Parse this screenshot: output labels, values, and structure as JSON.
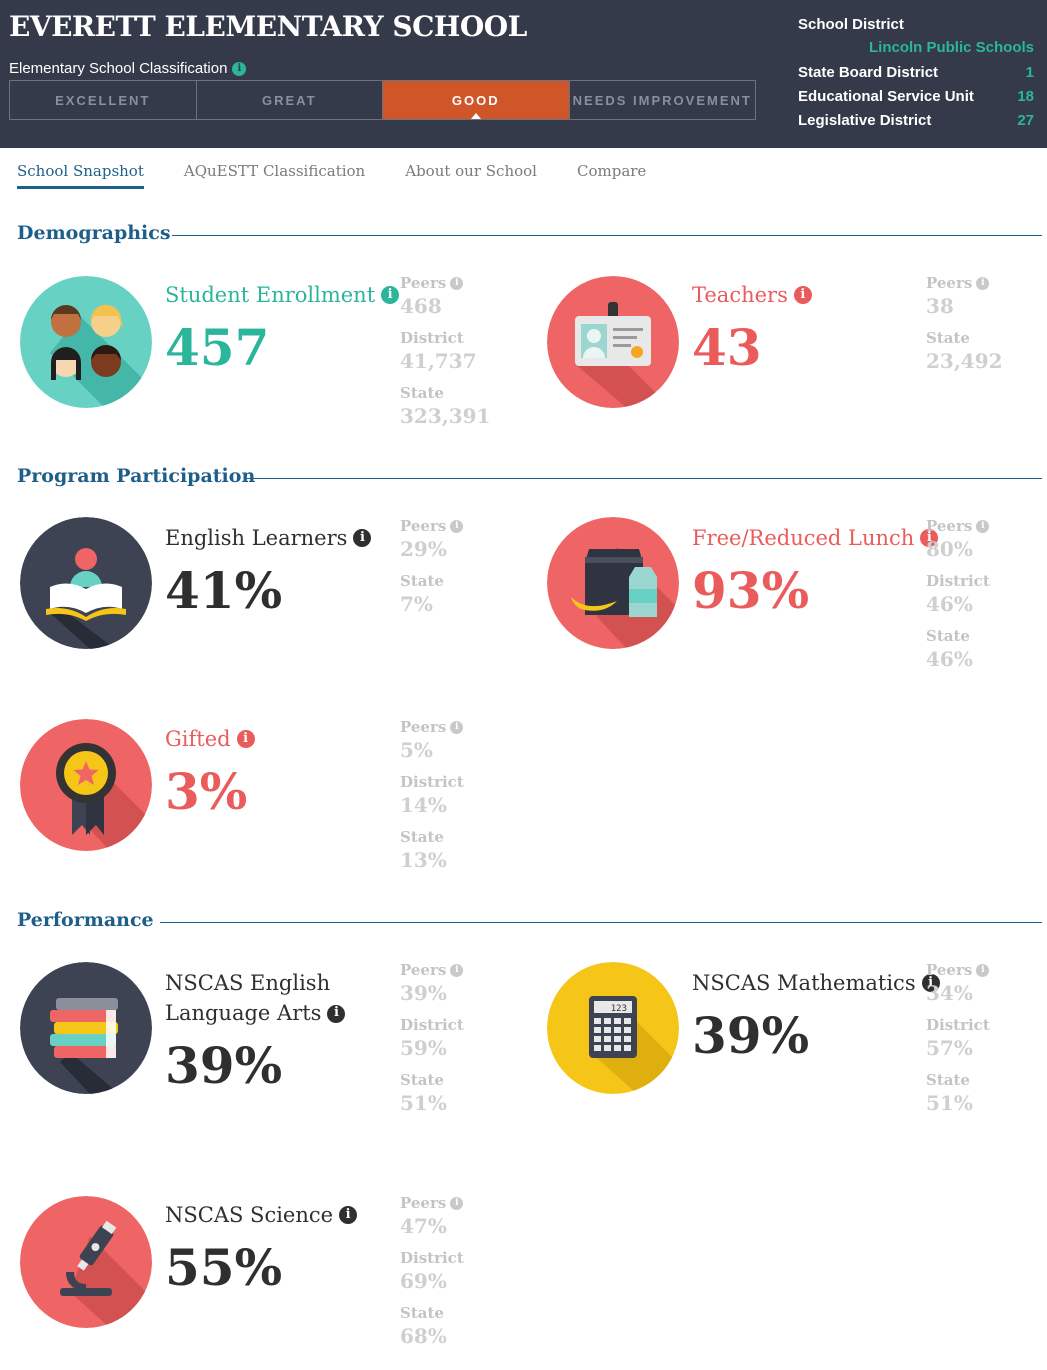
{
  "header": {
    "school_name": "EVERETT ELEMENTARY SCHOOL",
    "classification_label": "Elementary School Classification",
    "classification_info_icon": "i",
    "classifications": [
      "EXCELLENT",
      "GREAT",
      "GOOD",
      "NEEDS IMPROVEMENT"
    ],
    "active_classification": "GOOD",
    "district": {
      "school_district_label": "School District",
      "school_district_value": "Lincoln Public Schools",
      "rows": [
        {
          "label": "State Board District",
          "value": "1"
        },
        {
          "label": "Educational Service Unit",
          "value": "18"
        },
        {
          "label": "Legislative District",
          "value": "27"
        }
      ]
    }
  },
  "tabs": [
    "School Snapshot",
    "AQuESTT Classification",
    "About our School",
    "Compare"
  ],
  "sections": {
    "demographics": "Demographics",
    "program": "Program Participation",
    "performance": "Performance"
  },
  "metrics": {
    "enrollment": {
      "title": "Student Enrollment",
      "value": "457",
      "icon": "students-icon",
      "cmp": [
        {
          "label": "Peers",
          "value": "468"
        },
        {
          "label": "District",
          "value": "41,737"
        },
        {
          "label": "State",
          "value": "323,391"
        }
      ]
    },
    "teachers": {
      "title": "Teachers",
      "value": "43",
      "icon": "id-badge-icon",
      "cmp": [
        {
          "label": "Peers",
          "value": "38"
        },
        {
          "label": "State",
          "value": "23,492"
        }
      ]
    },
    "english_learners": {
      "title": "English Learners",
      "value": "41%",
      "icon": "reader-icon",
      "cmp": [
        {
          "label": "Peers",
          "value": "29%"
        },
        {
          "label": "State",
          "value": "7%"
        }
      ]
    },
    "lunch": {
      "title": "Free/Reduced Lunch",
      "value": "93%",
      "icon": "lunch-icon",
      "cmp": [
        {
          "label": "Peers",
          "value": "80%"
        },
        {
          "label": "District",
          "value": "46%"
        },
        {
          "label": "State",
          "value": "46%"
        }
      ]
    },
    "gifted": {
      "title": "Gifted",
      "value": "3%",
      "icon": "ribbon-icon",
      "cmp": [
        {
          "label": "Peers",
          "value": "5%"
        },
        {
          "label": "District",
          "value": "14%"
        },
        {
          "label": "State",
          "value": "13%"
        }
      ]
    },
    "ela": {
      "title_line1": "NSCAS English",
      "title_line2": "Language Arts",
      "value": "39%",
      "icon": "books-icon",
      "cmp": [
        {
          "label": "Peers",
          "value": "39%"
        },
        {
          "label": "District",
          "value": "59%"
        },
        {
          "label": "State",
          "value": "51%"
        }
      ]
    },
    "math": {
      "title": "NSCAS Mathematics",
      "value": "39%",
      "icon": "calculator-icon",
      "calc_display": "123",
      "cmp": [
        {
          "label": "Peers",
          "value": "34%"
        },
        {
          "label": "District",
          "value": "57%"
        },
        {
          "label": "State",
          "value": "51%"
        }
      ]
    },
    "science": {
      "title": "NSCAS Science",
      "value": "55%",
      "icon": "microscope-icon",
      "cmp": [
        {
          "label": "Peers",
          "value": "47%"
        },
        {
          "label": "District",
          "value": "69%"
        },
        {
          "label": "State",
          "value": "68%"
        }
      ]
    }
  },
  "colors": {
    "header_bg": "#343a4a",
    "teal": "#2bb59a",
    "red": "#ea5b5b",
    "orange": "#d0562a",
    "blue": "#1e5f8a",
    "yellow": "#f5c518"
  }
}
